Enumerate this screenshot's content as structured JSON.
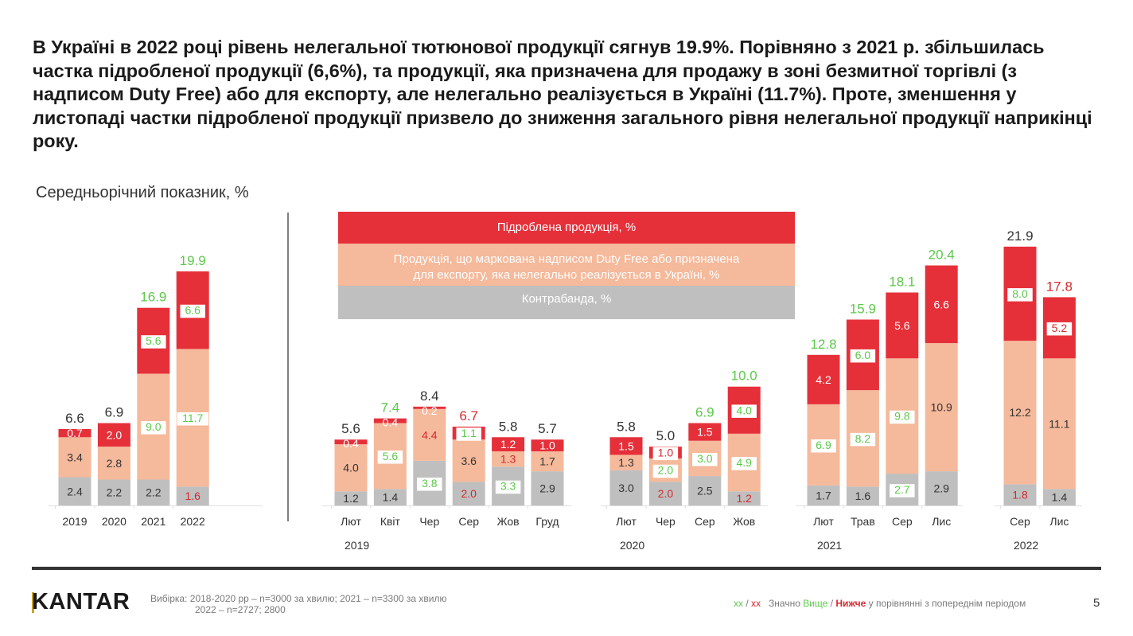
{
  "headline": "В Україні в 2022 році рівень нелегальної тютюнової продукції сягнув 19.9%. Порівняно з 2021 р. збільшилась частка підробленої продукції (6,6%), та продукції, яка призначена для продажу в зоні безмитної торгівлі (з надписом Duty Free) або для експорту, але нелегально реалізується в Україні (11.7%). Проте, зменшення у листопаді частки підробленої продукції призвело до зниження загального рівня нелегальної продукції наприкінці року.",
  "subtitle": "Середньорічний показник, %",
  "legend": {
    "counterfeit": "Підроблена продукція, %",
    "duty_free_line1": "Продукція, що маркована надписом Duty Free або призначена",
    "duty_free_line2": "для експорту, яка нелегально реалізується в Україні, %",
    "contraband": "Контрабанда, %"
  },
  "colors": {
    "counterfeit": "#e5303a",
    "duty_free": "#f5b99b",
    "contraband": "#bfbfbf",
    "higher": "#5cc94a",
    "lower": "#d42a2f",
    "neutral": "#333333"
  },
  "chart_data": {
    "type": "bar",
    "stacked": true,
    "title": "Середньорічний показник, %",
    "ylabel": "%",
    "ylim": [
      0,
      22
    ],
    "series_names": [
      "Контрабанда, %",
      "Продукція Duty Free / для експорту, %",
      "Підроблена продукція, %"
    ],
    "groups": [
      {
        "label": "",
        "bars": [
          {
            "x": "2019",
            "contraband": 2.4,
            "duty_free": 3.4,
            "counterfeit": 0.7,
            "total": 6.6,
            "sig": {
              "total": "n",
              "contraband": "n",
              "duty_free": "n",
              "counterfeit": "n"
            }
          },
          {
            "x": "2020",
            "contraband": 2.2,
            "duty_free": 2.8,
            "counterfeit": 2.0,
            "total": 6.9,
            "sig": {
              "total": "n",
              "contraband": "n",
              "duty_free": "n",
              "counterfeit": "n"
            }
          },
          {
            "x": "2021",
            "contraband": 2.2,
            "duty_free": 9.0,
            "counterfeit": 5.6,
            "total": 16.9,
            "sig": {
              "total": "h",
              "contraband": "n",
              "duty_free": "h",
              "counterfeit": "h"
            }
          },
          {
            "x": "2022",
            "contraband": 1.6,
            "duty_free": 11.7,
            "counterfeit": 6.6,
            "total": 19.9,
            "sig": {
              "total": "h",
              "contraband": "l",
              "duty_free": "h",
              "counterfeit": "h"
            }
          }
        ]
      },
      {
        "label": "2019",
        "bars": [
          {
            "x": "Лют",
            "contraband": 1.2,
            "duty_free": 4.0,
            "counterfeit": 0.4,
            "total": 5.6,
            "sig": {
              "total": "n",
              "contraband": "n",
              "duty_free": "n",
              "counterfeit": "n"
            }
          },
          {
            "x": "Квіт",
            "contraband": 1.4,
            "duty_free": 5.6,
            "counterfeit": 0.4,
            "total": 7.4,
            "sig": {
              "total": "h",
              "contraband": "n",
              "duty_free": "h",
              "counterfeit": "n"
            }
          },
          {
            "x": "Чер",
            "contraband": 3.8,
            "duty_free": 4.4,
            "counterfeit": 0.2,
            "total": 8.4,
            "sig": {
              "total": "n",
              "contraband": "h",
              "duty_free": "l",
              "counterfeit": "n"
            }
          },
          {
            "x": "Сер",
            "contraband": 2.0,
            "duty_free": 3.6,
            "counterfeit": 1.1,
            "total": 6.7,
            "sig": {
              "total": "l",
              "contraband": "l",
              "duty_free": "n",
              "counterfeit": "h"
            }
          },
          {
            "x": "Жов",
            "contraband": 3.3,
            "duty_free": 1.3,
            "counterfeit": 1.2,
            "total": 5.8,
            "sig": {
              "total": "n",
              "contraband": "h",
              "duty_free": "l",
              "counterfeit": "n"
            }
          },
          {
            "x": "Груд",
            "contraband": 2.9,
            "duty_free": 1.7,
            "counterfeit": 1.0,
            "total": 5.7,
            "sig": {
              "total": "n",
              "contraband": "n",
              "duty_free": "n",
              "counterfeit": "n"
            }
          }
        ]
      },
      {
        "label": "2020",
        "bars": [
          {
            "x": "Лют",
            "contraband": 3.0,
            "duty_free": 1.3,
            "counterfeit": 1.5,
            "total": 5.8,
            "sig": {
              "total": "n",
              "contraband": "n",
              "duty_free": "n",
              "counterfeit": "n"
            }
          },
          {
            "x": "Чер",
            "contraband": 2.0,
            "duty_free": 2.0,
            "counterfeit": 1.0,
            "total": 5.0,
            "sig": {
              "total": "n",
              "contraband": "l",
              "duty_free": "h",
              "counterfeit": "l"
            }
          },
          {
            "x": "Сер",
            "contraband": 2.5,
            "duty_free": 3.0,
            "counterfeit": 1.5,
            "total": 6.9,
            "sig": {
              "total": "h",
              "contraband": "n",
              "duty_free": "h",
              "counterfeit": "n"
            }
          },
          {
            "x": "Жов",
            "contraband": 1.2,
            "duty_free": 4.9,
            "counterfeit": 4.0,
            "total": 10.0,
            "sig": {
              "total": "h",
              "contraband": "l",
              "duty_free": "h",
              "counterfeit": "h"
            }
          }
        ]
      },
      {
        "label": "2021",
        "bars": [
          {
            "x": "Лют",
            "contraband": 1.7,
            "duty_free": 6.9,
            "counterfeit": 4.2,
            "total": 12.8,
            "sig": {
              "total": "h",
              "contraband": "n",
              "duty_free": "h",
              "counterfeit": "n"
            }
          },
          {
            "x": "Трав",
            "contraband": 1.6,
            "duty_free": 8.2,
            "counterfeit": 6.0,
            "total": 15.9,
            "sig": {
              "total": "h",
              "contraband": "n",
              "duty_free": "h",
              "counterfeit": "h"
            }
          },
          {
            "x": "Сер",
            "contraband": 2.7,
            "duty_free": 9.8,
            "counterfeit": 5.6,
            "total": 18.1,
            "sig": {
              "total": "h",
              "contraband": "h",
              "duty_free": "h",
              "counterfeit": "n"
            }
          },
          {
            "x": "Лис",
            "contraband": 2.9,
            "duty_free": 10.9,
            "counterfeit": 6.6,
            "total": 20.4,
            "sig": {
              "total": "h",
              "contraband": "n",
              "duty_free": "n",
              "counterfeit": "n"
            }
          }
        ]
      },
      {
        "label": "2022",
        "bars": [
          {
            "x": "Сер",
            "contraband": 1.8,
            "duty_free": 12.2,
            "counterfeit": 8.0,
            "total": 21.9,
            "sig": {
              "total": "n",
              "contraband": "l",
              "duty_free": "n",
              "counterfeit": "h"
            }
          },
          {
            "x": "Лис",
            "contraband": 1.4,
            "duty_free": 11.1,
            "counterfeit": 5.2,
            "total": 17.8,
            "sig": {
              "total": "l",
              "contraband": "n",
              "duty_free": "n",
              "counterfeit": "l"
            }
          }
        ]
      }
    ],
    "legend_position": "top-center"
  },
  "footer": {
    "logo": "KANTAR",
    "sample_line1": "Вибірка: 2018-2020 рр – n=3000 за хвилю; 2021 – n=3300 за хвилю",
    "sample_line2": "2022 – n=2727; 2800",
    "note_xx1": "xx",
    "note_slash": "/",
    "note_xx2": "xx",
    "note_prefix": "Значно",
    "note_higher": "Вище",
    "note_slash2": "/",
    "note_lower": "Нижче",
    "note_suffix": "у порівнянні з попереднім періодом",
    "page_number": "5"
  }
}
